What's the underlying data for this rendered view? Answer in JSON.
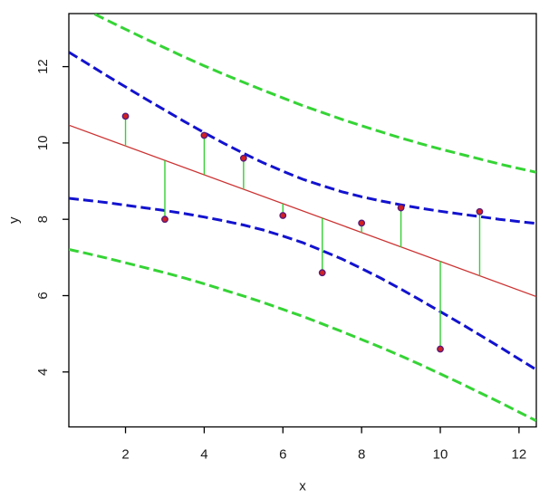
{
  "figure": {
    "background": "#ffffff",
    "border_color": "#000000"
  },
  "chart_data": {
    "type": "scatter",
    "title": "",
    "xlabel": "x",
    "ylabel": "y",
    "xlim": [
      0.56,
      12.44
    ],
    "ylim": [
      2.56,
      13.39
    ],
    "x_ticks": [
      2,
      4,
      6,
      8,
      10,
      12
    ],
    "y_ticks": [
      4,
      6,
      8,
      10,
      12
    ],
    "grid": false,
    "legend": "none",
    "points": {
      "x": [
        2,
        3,
        4,
        5,
        6,
        7,
        8,
        9,
        10,
        11
      ],
      "y": [
        10.7,
        8.0,
        10.2,
        9.6,
        8.1,
        6.6,
        7.9,
        8.3,
        4.6,
        8.2
      ]
    },
    "fitted": [
      9.92,
      9.54,
      9.17,
      8.79,
      8.41,
      8.03,
      7.65,
      7.27,
      6.9,
      6.52
    ],
    "regression_line": {
      "intercept": 10.678,
      "slope": -0.378,
      "style": "solid"
    },
    "bands": {
      "level": "90%",
      "style": "dashed",
      "x": [
        0.56,
        1,
        1.5,
        2,
        2.5,
        3,
        3.5,
        4,
        4.5,
        5,
        5.5,
        6,
        6.5,
        7,
        7.5,
        8,
        8.5,
        9,
        9.5,
        10,
        10.5,
        11,
        11.5,
        12,
        12.44
      ],
      "confidence_upper": [
        12.38,
        12.1,
        11.78,
        11.47,
        11.16,
        10.86,
        10.56,
        10.27,
        9.99,
        9.73,
        9.48,
        9.26,
        9.05,
        8.88,
        8.72,
        8.59,
        8.48,
        8.38,
        8.29,
        8.21,
        8.14,
        8.07,
        8.0,
        7.94,
        7.89
      ],
      "confidence_lower": [
        8.55,
        8.5,
        8.44,
        8.37,
        8.3,
        8.23,
        8.15,
        8.06,
        7.96,
        7.85,
        7.72,
        7.56,
        7.39,
        7.18,
        6.96,
        6.71,
        6.45,
        6.17,
        5.88,
        5.58,
        5.28,
        4.97,
        4.66,
        4.34,
        4.06
      ],
      "prediction_upper": [
        13.72,
        13.49,
        13.23,
        12.98,
        12.73,
        12.49,
        12.25,
        12.02,
        11.8,
        11.59,
        11.38,
        11.18,
        10.98,
        10.8,
        10.62,
        10.45,
        10.29,
        10.13,
        9.98,
        9.84,
        9.71,
        9.58,
        9.45,
        9.33,
        9.23
      ],
      "prediction_lower": [
        7.21,
        7.11,
        6.99,
        6.86,
        6.73,
        6.6,
        6.46,
        6.31,
        6.15,
        5.99,
        5.82,
        5.64,
        5.46,
        5.26,
        5.06,
        4.85,
        4.64,
        4.42,
        4.19,
        3.95,
        3.71,
        3.46,
        3.21,
        2.95,
        2.72
      ]
    },
    "colors": {
      "regression": "#cc3333",
      "confidence_band": "#1212cf",
      "prediction_band": "#35d435",
      "residual_segment": "#35cf35",
      "point_fill": "#d42020",
      "point_stroke": "#5a1a78",
      "axis": "#000000",
      "text": "#1a1a1a"
    }
  }
}
